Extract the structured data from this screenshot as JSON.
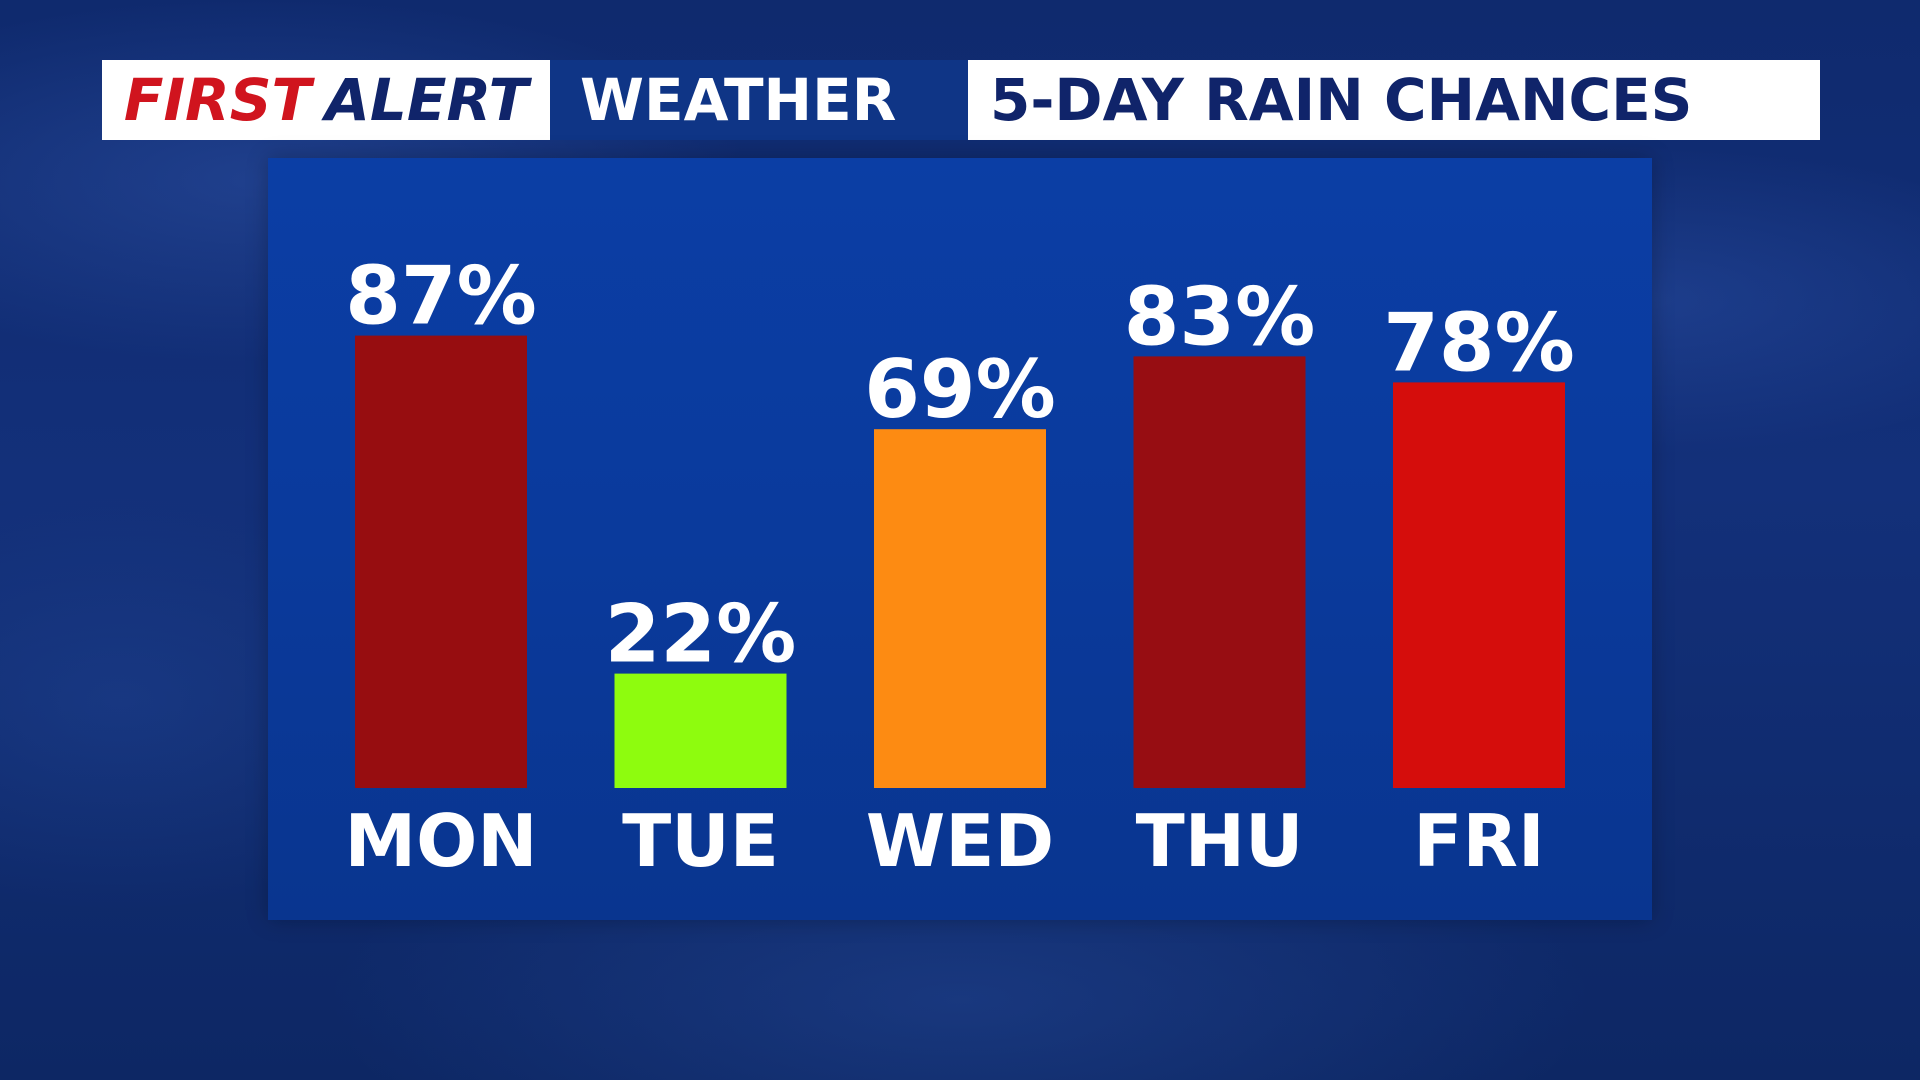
{
  "header": {
    "first": "FIRST",
    "alert": "ALERT",
    "weather": "WEATHER",
    "title": "5-DAY RAIN CHANCES"
  },
  "colors": {
    "first": "#d0141e",
    "navy": "#10246a",
    "panel": "#0a3a9c"
  },
  "chart_data": {
    "type": "bar",
    "title": "5-DAY RAIN CHANCES",
    "categories": [
      "MON",
      "TUE",
      "WED",
      "THU",
      "FRI"
    ],
    "values": [
      87,
      22,
      69,
      83,
      78
    ],
    "value_labels": [
      "87%",
      "22%",
      "69%",
      "83%",
      "78%"
    ],
    "bar_colors": [
      "#970d10",
      "#8efc0e",
      "#fd8b12",
      "#970d12",
      "#d50d0c"
    ],
    "unit": "%",
    "ylim": [
      0,
      100
    ],
    "grid": false,
    "legend": "none"
  }
}
